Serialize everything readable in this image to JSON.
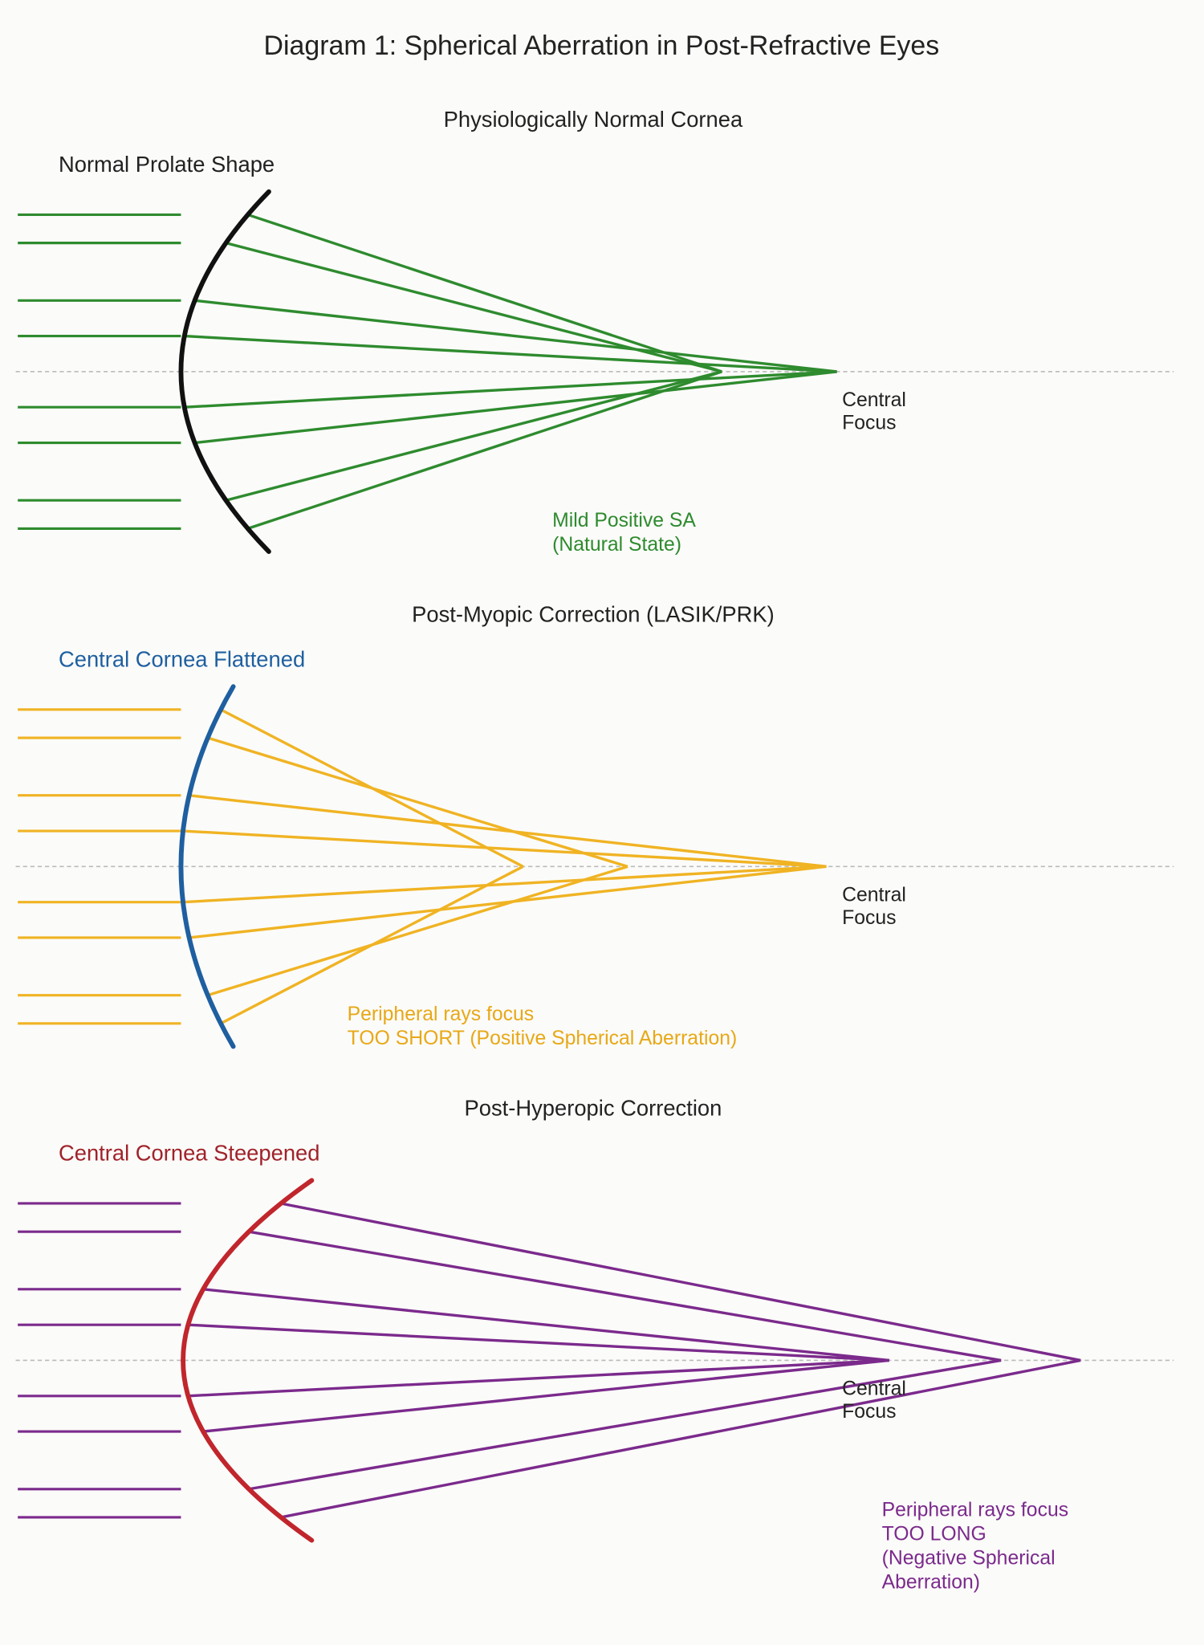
{
  "title": "Diagram 1: Spherical Aberration in Post-Refractive Eyes",
  "panels": [
    {
      "heading": "Physiologically Normal Cornea",
      "cornea_label": "Normal Prolate Shape",
      "focus_label": [
        "Central",
        "Focus"
      ],
      "note": [
        "Mild Positive SA",
        "(Natural State)"
      ]
    },
    {
      "heading": "Post-Myopic Correction (LASIK/PRK)",
      "cornea_label": "Central Cornea Flattened",
      "focus_label": [
        "Central",
        "Focus"
      ],
      "note": [
        "Peripheral rays focus",
        "TOO SHORT (Positive Spherical Aberration)"
      ]
    },
    {
      "heading": "Post-Hyperopic Correction",
      "cornea_label": "Central Cornea Steepened",
      "focus_label": [
        "Central",
        "Focus"
      ],
      "note": [
        "Peripheral rays focus",
        "TOO LONG",
        "(Negative Spherical",
        "Aberration)"
      ]
    }
  ]
}
